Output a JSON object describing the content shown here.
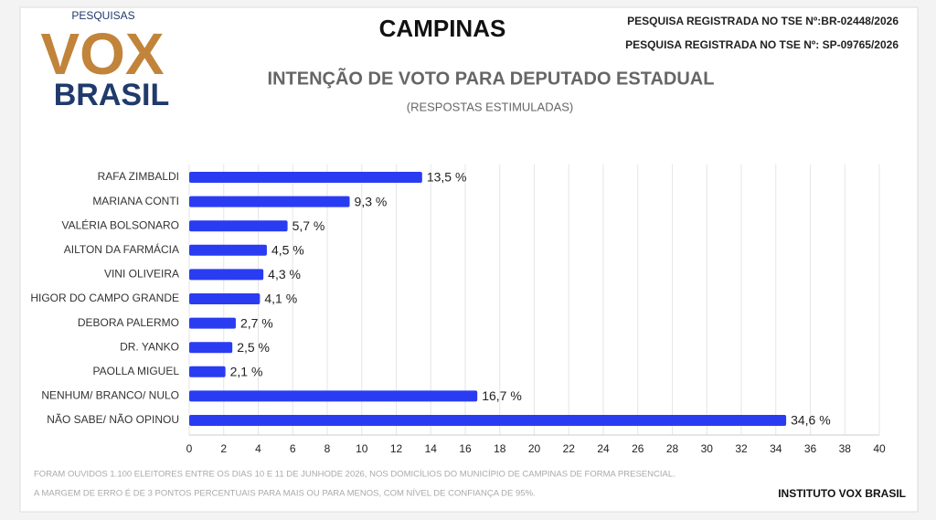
{
  "logo": {
    "top": "PESQUISAS",
    "main": "VOX",
    "bottom": "BRASIL"
  },
  "header": {
    "registration_1": "PESQUISA REGISTRADA NO TSE Nº:BR-02448/2026",
    "registration_2": "PESQUISA REGISTRADA NO TSE Nº: SP-09765/2026"
  },
  "chart_data": {
    "type": "hbar",
    "title": "CAMPINAS",
    "subtitle": "INTENÇÃO DE VOTO PARA DEPUTADO ESTADUAL",
    "note": "(RESPOSTAS ESTIMULADAS)",
    "categories": [
      "RAFA ZIMBALDI",
      "MARIANA CONTI",
      "VALÉRIA BOLSONARO",
      "AILTON DA FARMÁCIA",
      "VINI OLIVEIRA",
      "HIGOR DO CAMPO GRANDE",
      "DEBORA PALERMO",
      "DR. YANKO",
      "PAOLLA MIGUEL",
      "NENHUM/ BRANCO/ NULO",
      "NÃO SABE/ NÃO OPINOU"
    ],
    "values": [
      13.5,
      9.3,
      5.7,
      4.5,
      4.3,
      4.1,
      2.7,
      2.5,
      2.1,
      16.7,
      34.6
    ],
    "value_labels": [
      "13,5 %",
      "9,3 %",
      "5,7 %",
      "4,5 %",
      "4,3 %",
      "4,1 %",
      "2,7 %",
      "2,5 %",
      "2,1 %",
      "16,7 %",
      "34,6 %"
    ],
    "color": "#2a3cf2",
    "xlim": [
      0,
      40
    ],
    "xticks": [
      0,
      2,
      4,
      6,
      8,
      10,
      12,
      14,
      16,
      18,
      20,
      22,
      24,
      26,
      28,
      30,
      32,
      34,
      36,
      38,
      40
    ],
    "grid": true
  },
  "footer": {
    "note_1": "FORAM OUVIDOS 1.100 ELEITORES ENTRE OS DIAS 10 E 11 DE JUNHODE 2026, NOS DOMICÍLIOS DO MUNICÍPIO DE CAMPINAS DE FORMA PRESENCIAL.",
    "note_2": "A MARGEM DE ERRO É DE 3 PONTOS PERCENTUAIS PARA MAIS OU PARA MENOS, COM NÍVEL DE CONFIANÇA DE 95%.",
    "source": "INSTITUTO VOX BRASIL"
  }
}
